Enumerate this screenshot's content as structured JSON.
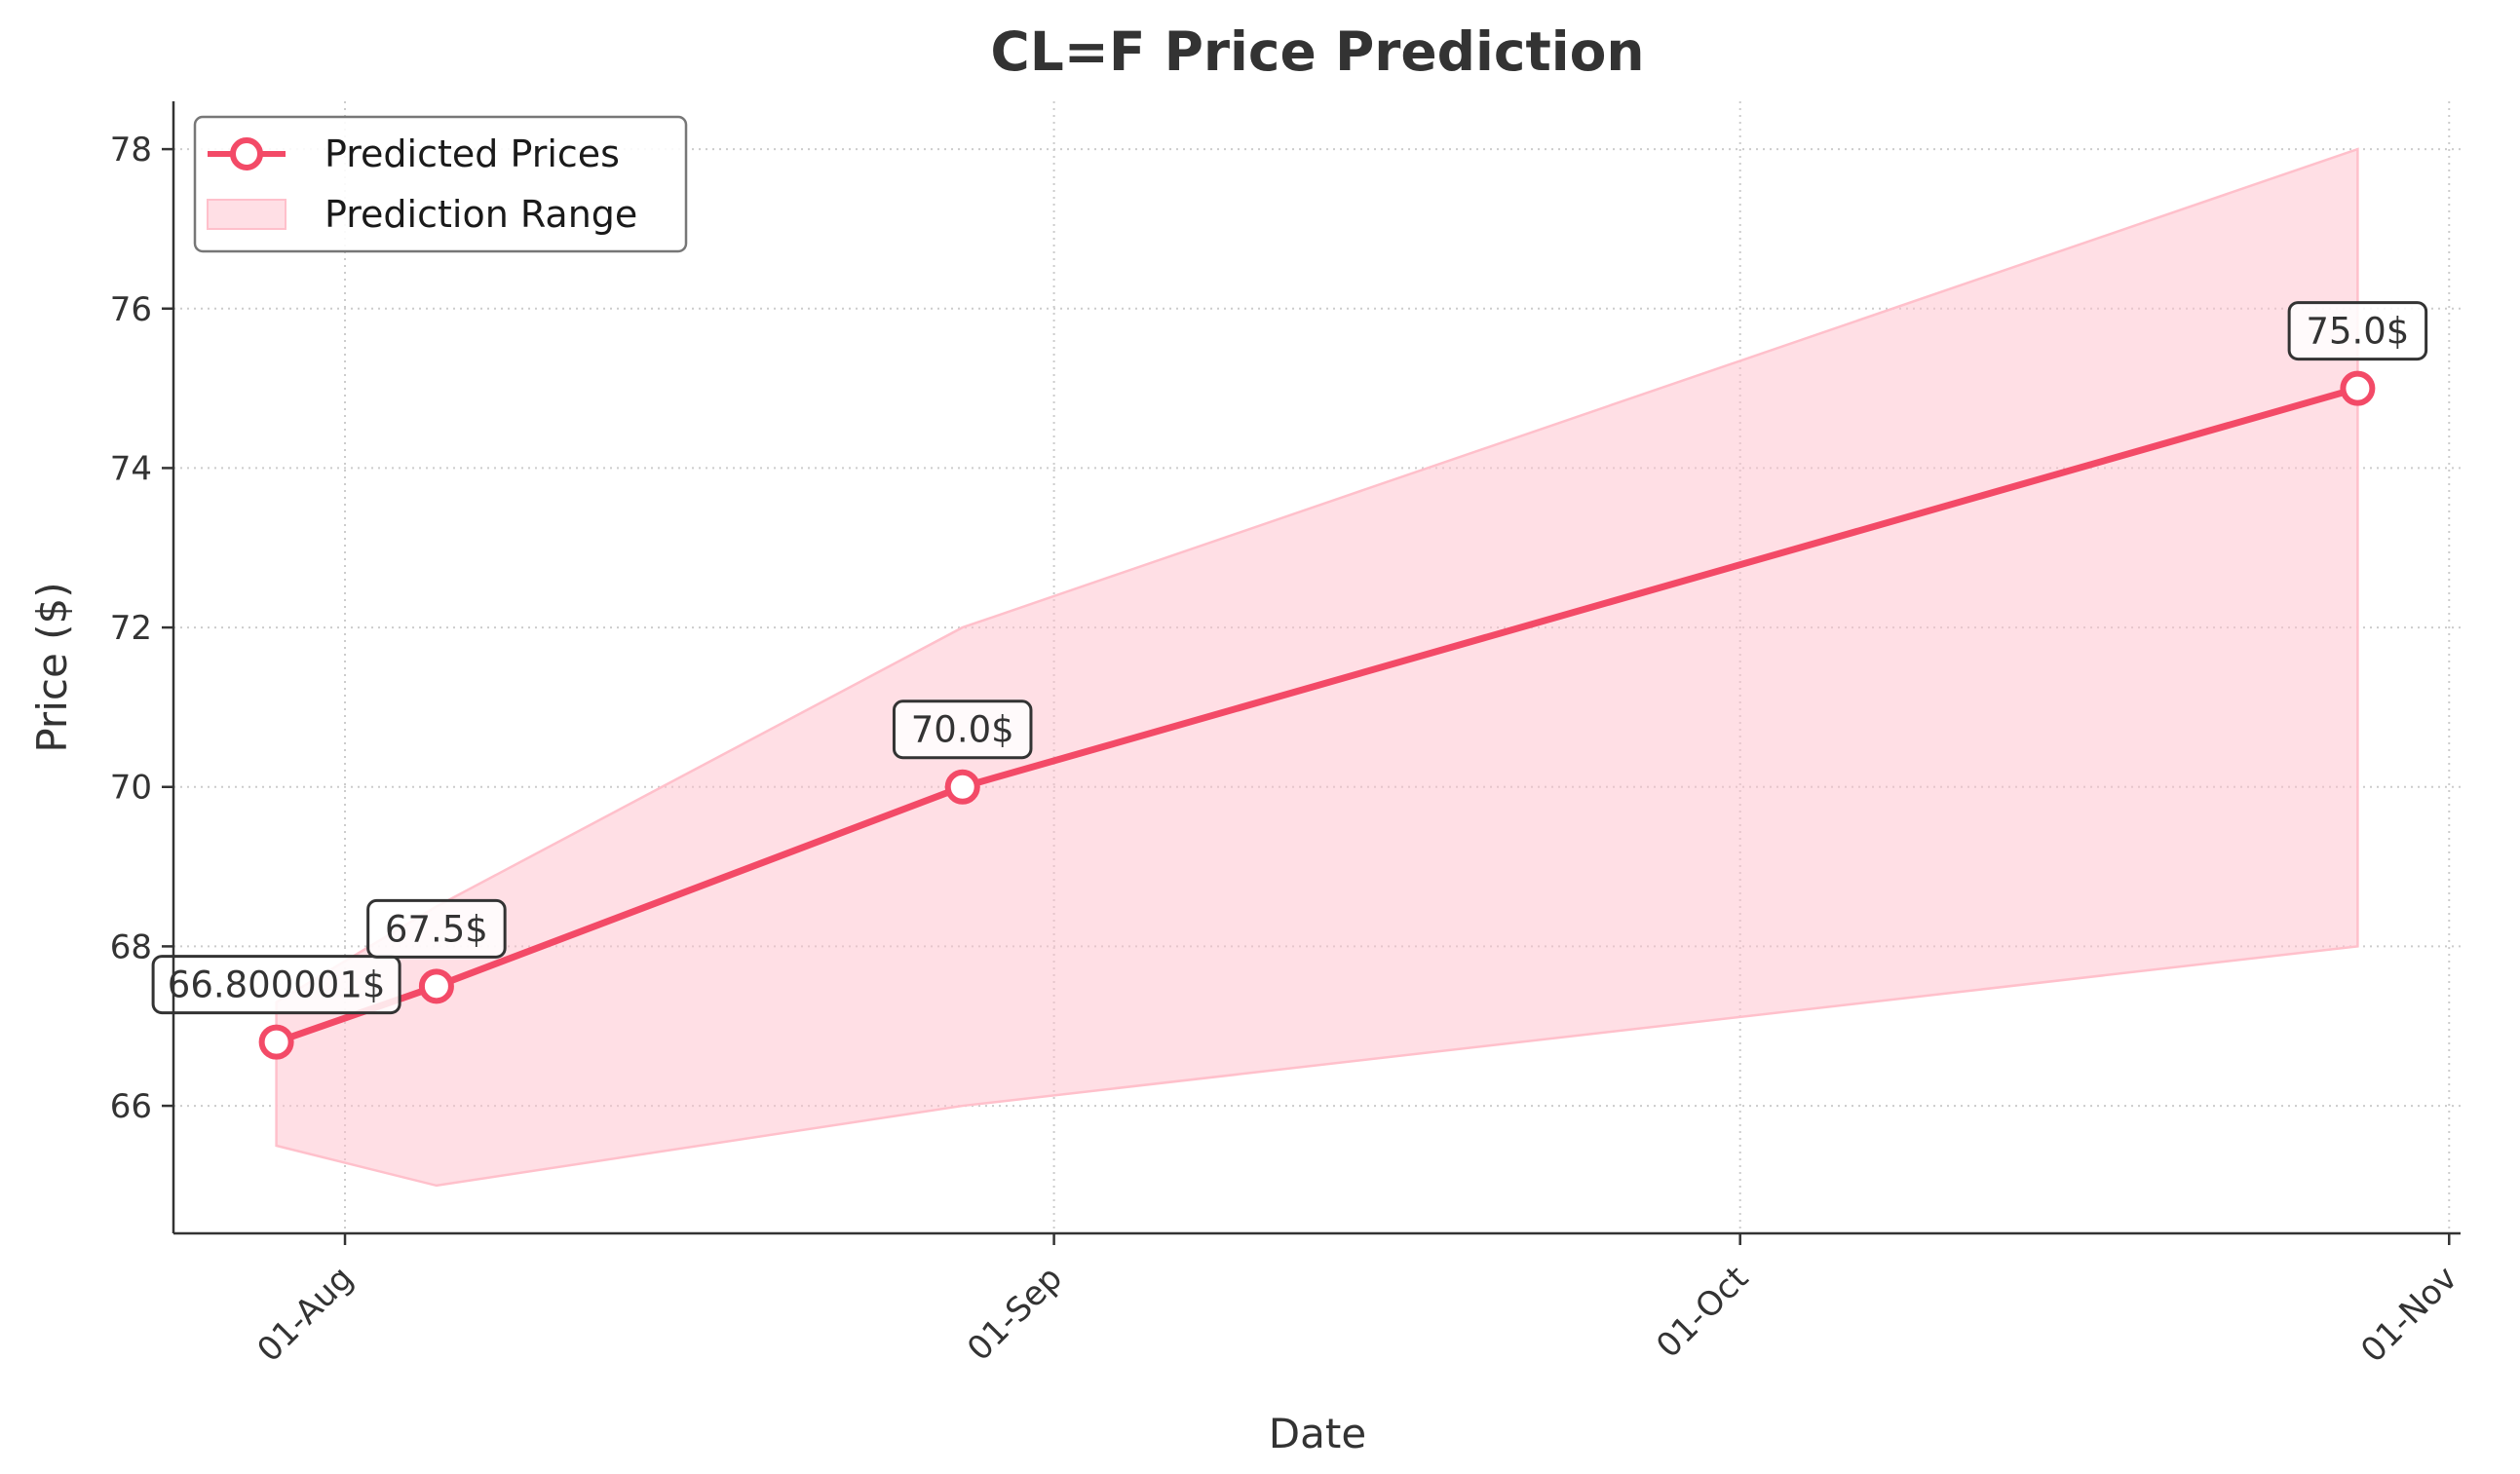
{
  "chart_data": {
    "type": "line",
    "title": "CL=F Price Prediction",
    "xlabel": "Date",
    "ylabel": "Price ($)",
    "x_tick_labels": [
      "01-Aug",
      "01-Sep",
      "01-Oct",
      "01-Nov"
    ],
    "x_tick_dates": [
      "2025-08-01",
      "2025-09-01",
      "2025-10-01",
      "2025-11-01"
    ],
    "y_ticks": [
      66,
      68,
      70,
      72,
      74,
      76,
      78
    ],
    "xlim": [
      "2025-07-24.5",
      "2025-11-01.5"
    ],
    "ylim": [
      64.4,
      78.6
    ],
    "grid": true,
    "legend_position": "top-left",
    "series": [
      {
        "name": "Predicted Prices",
        "x": [
          "2025-07-29",
          "2025-08-05",
          "2025-08-28",
          "2025-10-28"
        ],
        "values": [
          66.800001,
          67.5,
          70.0,
          75.0
        ],
        "labels": [
          "66.800001$",
          "67.5$",
          "70.0$",
          "75.0$"
        ],
        "color": "#f34a67"
      },
      {
        "name": "Prediction Range",
        "x": [
          "2025-07-29",
          "2025-08-05",
          "2025-08-28",
          "2025-10-28"
        ],
        "lower": [
          65.5,
          65.0,
          66.0,
          68.0
        ],
        "upper": [
          67.3,
          68.5,
          72.0,
          78.0
        ],
        "color": "#ffc0cb"
      }
    ]
  }
}
